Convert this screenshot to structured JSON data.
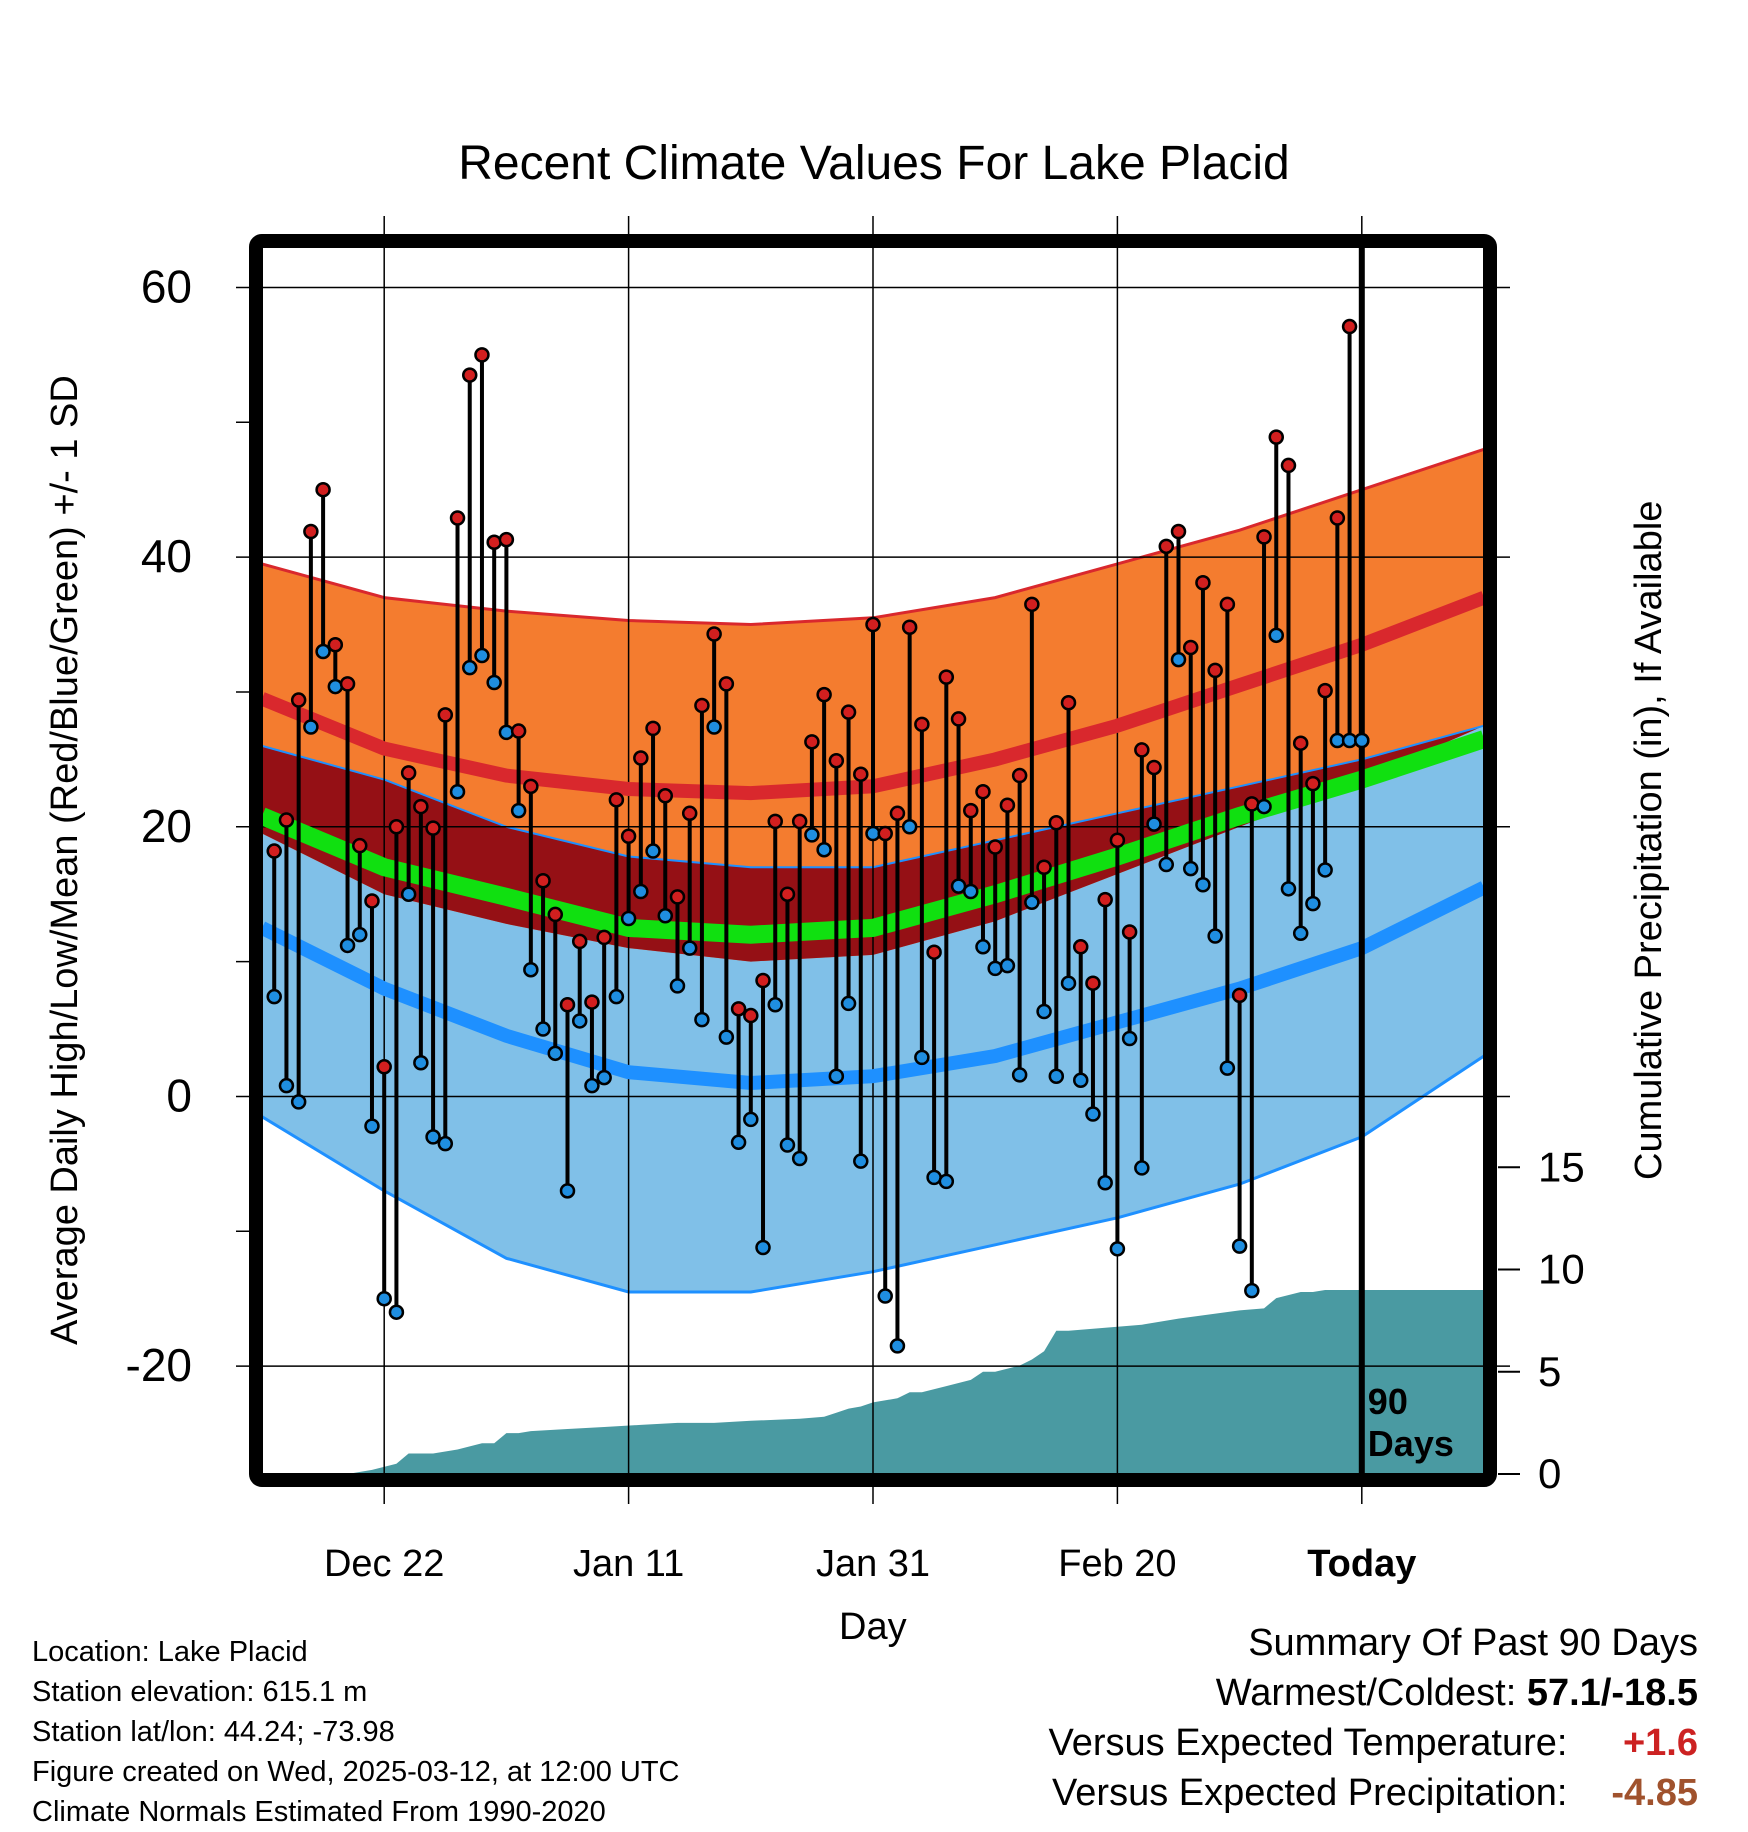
{
  "chart_data": {
    "type": "line",
    "title": "Recent Climate Values For Lake Placid",
    "xlabel": "Day",
    "ylabel": "Average Daily High/Low/Mean (Red/Blue/Green) +/- 1 SD",
    "ylabel_right": "Cumulative Precipitation (in), If Available",
    "x_ticks": [
      {
        "day": 10,
        "label": "Dec 22"
      },
      {
        "day": 30,
        "label": "Jan 11"
      },
      {
        "day": 50,
        "label": "Jan 31"
      },
      {
        "day": 70,
        "label": "Feb 20"
      },
      {
        "day": 90,
        "label": "Today"
      }
    ],
    "xlim": [
      0,
      100
    ],
    "ylim": [
      -28,
      63
    ],
    "y_ticks": [
      -20,
      0,
      20,
      40,
      60
    ],
    "y_minor_ticks": [
      -10,
      10,
      30,
      50
    ],
    "y2_ticks": [
      0,
      5,
      10,
      15
    ],
    "y2lim": [
      0,
      60
    ],
    "today_marker": {
      "day": 90,
      "label_line1": "90",
      "label_line2": "Days"
    },
    "normals": {
      "days": [
        0,
        10,
        20,
        30,
        40,
        50,
        60,
        70,
        80,
        90,
        100
      ],
      "high_mean": [
        29.5,
        25.8,
        23.8,
        22.8,
        22.5,
        23.0,
        25.0,
        27.5,
        30.5,
        33.5,
        37.0
      ],
      "high_upper": [
        39.5,
        37.0,
        36.0,
        35.3,
        35.0,
        35.5,
        37.0,
        39.5,
        42.0,
        45.0,
        48.0
      ],
      "high_lower": [
        19.5,
        15.0,
        12.8,
        11.0,
        10.0,
        10.5,
        13.0,
        16.5,
        20.0,
        23.5,
        27.5
      ],
      "mean_mean": [
        20.8,
        17.0,
        14.8,
        12.5,
        12.0,
        12.5,
        15.0,
        17.8,
        20.8,
        23.5,
        26.5
      ],
      "low_mean": [
        12.5,
        8.0,
        4.5,
        1.8,
        1.0,
        1.5,
        3.0,
        5.5,
        8.0,
        11.0,
        15.5
      ],
      "low_upper": [
        26.0,
        23.5,
        20.0,
        17.8,
        17.0,
        17.0,
        19.0,
        21.0,
        23.0,
        25.0,
        27.5
      ],
      "low_lower": [
        -1.5,
        -7.0,
        -12.0,
        -14.5,
        -14.5,
        -13.0,
        -11.0,
        -9.0,
        -6.5,
        -3.0,
        3.0
      ]
    },
    "daily": {
      "days": [
        1,
        2,
        3,
        4,
        5,
        6,
        7,
        8,
        9,
        10,
        11,
        12,
        13,
        14,
        15,
        16,
        17,
        18,
        19,
        20,
        21,
        22,
        23,
        24,
        25,
        26,
        27,
        28,
        29,
        30,
        31,
        32,
        33,
        34,
        35,
        36,
        37,
        38,
        39,
        40,
        41,
        42,
        43,
        44,
        45,
        46,
        47,
        48,
        49,
        50,
        51,
        52,
        53,
        54,
        55,
        56,
        57,
        58,
        59,
        60,
        61,
        62,
        63,
        64,
        65,
        66,
        67,
        68,
        69,
        70,
        71,
        72,
        73,
        74,
        75,
        76,
        77,
        78,
        79,
        80,
        81,
        82,
        83,
        84,
        85,
        86,
        87,
        88,
        89,
        90
      ],
      "high": [
        18.2,
        20.5,
        29.4,
        41.9,
        45.0,
        33.5,
        30.6,
        18.6,
        14.5,
        2.2,
        20.0,
        24.0,
        21.5,
        19.9,
        28.3,
        42.9,
        53.5,
        55.0,
        41.1,
        41.3,
        27.1,
        23.0,
        16.0,
        13.5,
        6.8,
        11.5,
        7.0,
        11.8,
        22.0,
        19.3,
        25.1,
        27.3,
        22.3,
        14.8,
        21.0,
        29.0,
        34.3,
        30.6,
        6.5,
        6.0,
        8.6,
        20.4,
        15.0,
        20.4,
        26.3,
        29.8,
        24.9,
        28.5,
        23.9,
        35.0,
        19.5,
        21.0,
        34.8,
        27.6,
        10.7,
        31.1,
        28.0,
        21.2,
        22.6,
        18.5,
        21.6,
        23.8,
        36.5,
        17.0,
        20.3,
        29.2,
        11.1,
        8.4,
        14.6,
        19.0,
        12.2,
        25.7,
        24.4,
        40.8,
        41.9,
        33.3,
        38.1,
        31.6,
        36.5,
        7.5,
        21.7,
        41.5,
        48.9,
        46.8,
        26.2,
        23.2,
        30.1,
        42.9,
        57.1,
        26.4
      ],
      "low": [
        7.4,
        0.8,
        -0.4,
        27.4,
        33.0,
        30.4,
        11.2,
        12.0,
        -2.2,
        -15.0,
        -16.0,
        15.0,
        2.5,
        -3.0,
        -3.5,
        22.6,
        31.8,
        32.7,
        30.7,
        27.0,
        21.2,
        9.4,
        5.0,
        3.2,
        -7.0,
        5.6,
        0.8,
        1.4,
        7.4,
        13.2,
        15.2,
        18.2,
        13.4,
        8.2,
        11.0,
        5.7,
        27.4,
        4.4,
        -3.4,
        -1.7,
        -11.2,
        6.8,
        -3.6,
        -4.6,
        19.4,
        18.3,
        1.5,
        6.9,
        -4.8,
        19.5,
        -14.8,
        -18.5,
        20.0,
        2.9,
        -6.0,
        -6.3,
        15.6,
        15.2,
        11.1,
        9.5,
        9.7,
        1.6,
        14.4,
        6.3,
        1.5,
        8.4,
        1.2,
        -1.3,
        -6.4,
        -11.3,
        4.3,
        -5.3,
        20.2,
        17.2,
        32.4,
        16.9,
        15.7,
        11.9,
        2.1,
        -11.1,
        -14.4,
        21.5,
        34.2,
        15.4,
        12.1,
        14.3,
        16.8,
        26.4,
        26.4,
        26.4
      ]
    },
    "precip_cumulative": {
      "days": [
        0,
        7,
        9,
        11,
        12,
        14,
        16,
        18,
        19,
        20,
        21,
        22,
        25,
        28,
        31,
        34,
        37,
        40,
        44,
        46,
        47,
        48,
        49,
        50,
        52,
        53,
        54,
        56,
        58,
        59,
        60,
        62,
        63,
        64,
        65,
        66,
        70,
        72,
        75,
        80,
        82,
        83,
        85,
        86,
        87,
        90,
        100
      ],
      "values": [
        0,
        0,
        0.2,
        0.5,
        1.0,
        1.0,
        1.2,
        1.5,
        1.5,
        2.0,
        2.0,
        2.1,
        2.2,
        2.3,
        2.4,
        2.5,
        2.5,
        2.6,
        2.7,
        2.8,
        3.0,
        3.2,
        3.3,
        3.5,
        3.7,
        4.0,
        4.0,
        4.3,
        4.6,
        5.0,
        5.0,
        5.3,
        5.6,
        6.0,
        7.0,
        7.0,
        7.2,
        7.3,
        7.6,
        8.0,
        8.1,
        8.6,
        8.9,
        8.9,
        9.0,
        9.0,
        9.0
      ]
    }
  },
  "meta": {
    "location": "Location: Lake Placid",
    "elevation": "Station elevation: 615.1 m",
    "latlon": "Station lat/lon: 44.24; -73.98",
    "created": "Figure created on Wed, 2025-03-12, at 12:00 UTC",
    "normals": "Climate Normals Estimated From 1990-2020"
  },
  "summary": {
    "heading": "Summary Of Past 90 Days",
    "warm_cold_label": "Warmest/Coldest:",
    "warm_cold_value": "57.1/-18.5",
    "temp_label": "Versus Expected Temperature:",
    "temp_value": "+1.6",
    "precip_label": "Versus Expected Precipitation:",
    "precip_value": "-4.85"
  },
  "colors": {
    "high_band": "#f47c2f",
    "high_line": "#d9282d",
    "overlap_band": "#951015",
    "mean_line": "#10e010",
    "low_band": "#80c0e8",
    "low_line": "#1e90ff",
    "precip_fill": "#4a9aa2",
    "high_dot": "#d21f1f",
    "low_dot": "#1f8ee0"
  }
}
